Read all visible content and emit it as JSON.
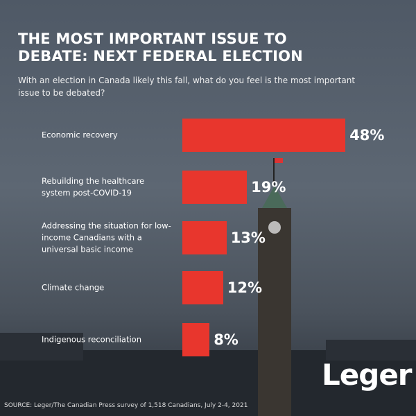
{
  "chart_data": {
    "type": "bar",
    "orientation": "horizontal",
    "title": "THE MOST IMPORTANT ISSUE TO DEBATE: NEXT FEDERAL ELECTION",
    "subtitle": "With an election in Canada likely this fall, what do you feel is the most important issue to be debated?",
    "categories": [
      "Economic recovery",
      "Rebuilding the healthcare system post-COVID-19",
      "Addressing the situation for low-income Canadians with a universal basic income",
      "Climate change",
      "Indigenous reconciliation"
    ],
    "values": [
      48,
      19,
      13,
      12,
      8
    ],
    "value_labels": [
      "48%",
      "19%",
      "13%",
      "12%",
      "8%"
    ],
    "color": "#e8362d",
    "source": "SOURCE: Leger/The Canadian Press survey of 1,518 Canadians, July 2-4, 2021",
    "logo": "Leger"
  }
}
